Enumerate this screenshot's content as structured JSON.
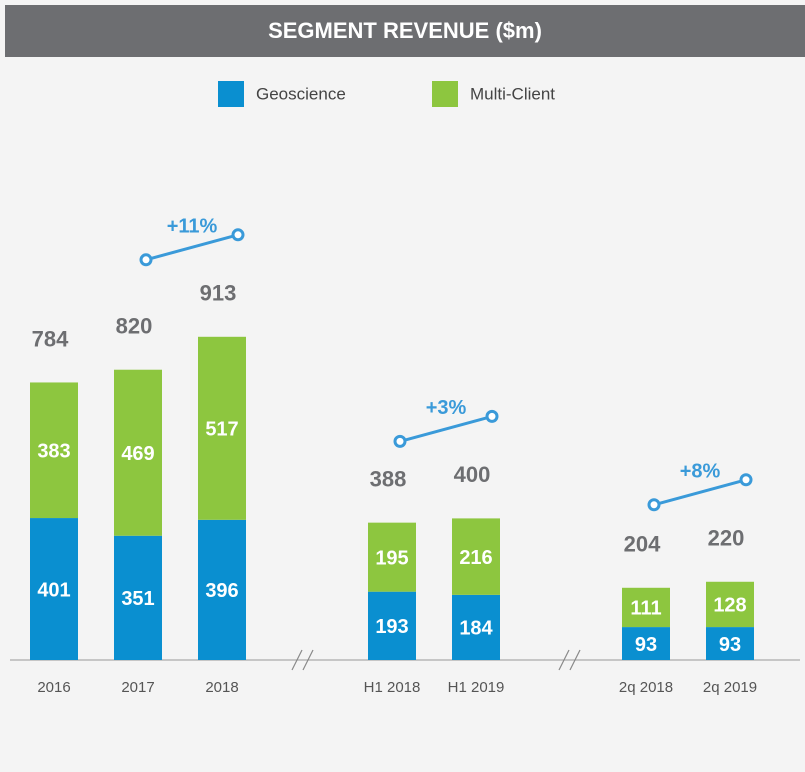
{
  "chart_data": {
    "type": "stacked-bar",
    "title": "SEGMENT REVENUE ($m)",
    "categories": [
      "2016",
      "2017",
      "2018",
      "H1 2018",
      "H1 2019",
      "2q 2018",
      "2q 2019"
    ],
    "series": [
      {
        "name": "Geoscience",
        "color": "#0a8fd0",
        "values": [
          401,
          351,
          396,
          193,
          184,
          93,
          93
        ]
      },
      {
        "name": "Multi-Client",
        "color": "#8dc63f",
        "values": [
          383,
          469,
          517,
          195,
          216,
          111,
          128
        ]
      }
    ],
    "totals": [
      784,
      820,
      913,
      388,
      400,
      204,
      220
    ],
    "annotations": [
      "+11%",
      "+3%",
      "+8%"
    ]
  }
}
